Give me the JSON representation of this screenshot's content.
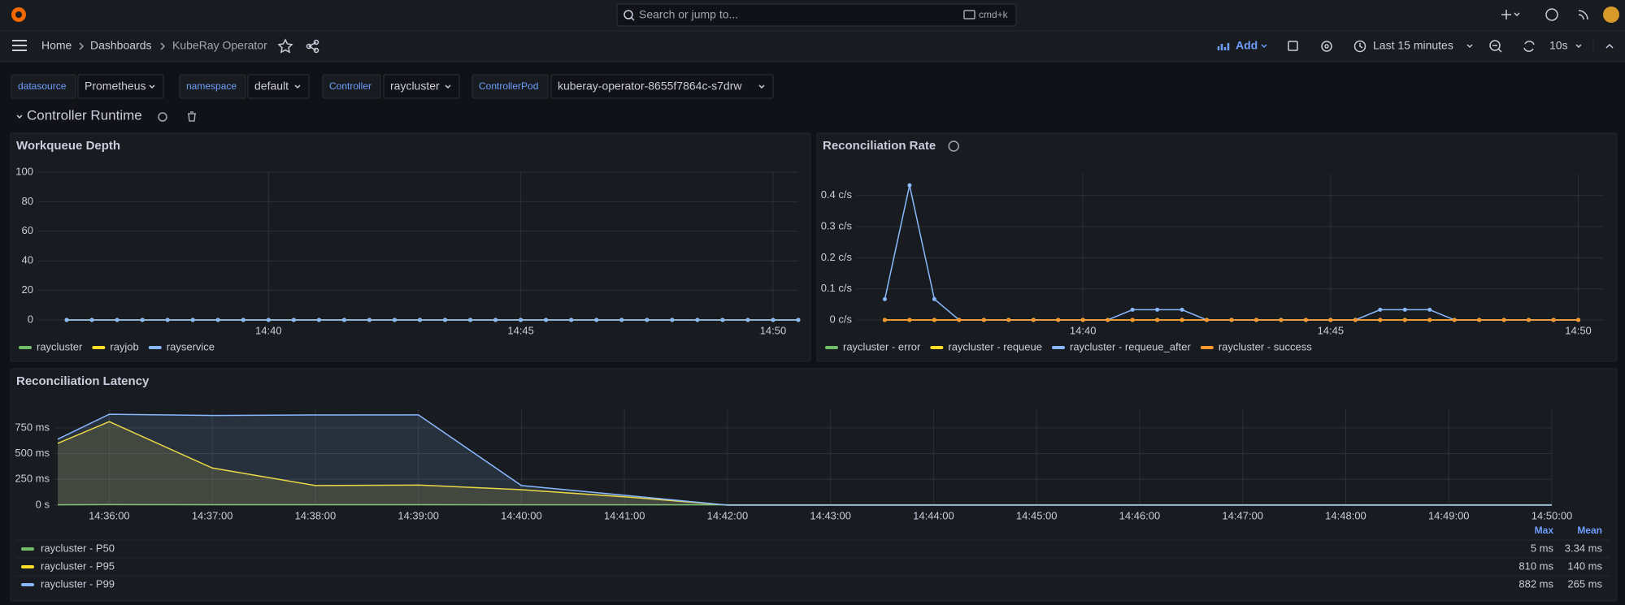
{
  "topbar": {
    "search": "Search or jump to...",
    "shortcut": "cmd+k"
  },
  "breadcrumbs": [
    "Home",
    "Dashboards",
    "KubeRay Operator"
  ],
  "toolbar": {
    "add": "Add",
    "time_range": "Last 15 minutes",
    "refresh": "10s"
  },
  "variables": [
    {
      "label": "datasource",
      "value": "Prometheus"
    },
    {
      "label": "namespace",
      "value": "default"
    },
    {
      "label": "Controller",
      "value": "raycluster"
    },
    {
      "label": "ControllerPod",
      "value": "kuberay-operator-8655f7864c-s7drw"
    }
  ],
  "row": {
    "title": "Controller Runtime"
  },
  "panels": [
    {
      "title": "Workqueue Depth",
      "type": "line",
      "points": true,
      "x": [
        "14:36:00",
        "14:36:30",
        "14:37:00",
        "14:37:30",
        "14:38:00",
        "14:38:30",
        "14:39:00",
        "14:39:30",
        "14:40:00",
        "14:40:30",
        "14:41:00",
        "14:41:30",
        "14:42:00",
        "14:42:30",
        "14:43:00",
        "14:43:30",
        "14:44:00",
        "14:44:30",
        "14:45:00",
        "14:45:30",
        "14:46:00",
        "14:46:30",
        "14:47:00",
        "14:47:30",
        "14:48:00",
        "14:48:30",
        "14:49:00",
        "14:49:30",
        "14:50:00",
        "14:50:30"
      ],
      "xlim": [
        "14:35:30",
        "14:50:30"
      ],
      "xticks": [
        "14:40",
        "14:45",
        "14:50"
      ],
      "ylim": [
        0,
        100
      ],
      "yticks": [
        0,
        20,
        40,
        60,
        80,
        100
      ],
      "grid": true,
      "series": [
        {
          "name": "raycluster",
          "color": "#73bf69",
          "values": [
            0,
            0,
            0,
            0,
            0,
            0,
            0,
            0,
            0,
            0,
            0,
            0,
            0,
            0,
            0,
            0,
            0,
            0,
            0,
            0,
            0,
            0,
            0,
            0,
            0,
            0,
            0,
            0,
            0,
            0
          ]
        },
        {
          "name": "rayjob",
          "color": "#fade2a",
          "values": [
            0,
            0,
            0,
            0,
            0,
            0,
            0,
            0,
            0,
            0,
            0,
            0,
            0,
            0,
            0,
            0,
            0,
            0,
            0,
            0,
            0,
            0,
            0,
            0,
            0,
            0,
            0,
            0,
            0,
            0
          ]
        },
        {
          "name": "rayservice",
          "color": "#8ab8ff",
          "values": [
            0,
            0,
            0,
            0,
            0,
            0,
            0,
            0,
            0,
            0,
            0,
            0,
            0,
            0,
            0,
            0,
            0,
            0,
            0,
            0,
            0,
            0,
            0,
            0,
            0,
            0,
            0,
            0,
            0,
            0
          ]
        }
      ]
    },
    {
      "title": "Reconciliation Rate",
      "type": "line",
      "points": true,
      "x": [
        "14:36:00",
        "14:36:30",
        "14:37:00",
        "14:37:30",
        "14:38:00",
        "14:38:30",
        "14:39:00",
        "14:39:30",
        "14:40:00",
        "14:40:30",
        "14:41:00",
        "14:41:30",
        "14:42:00",
        "14:42:30",
        "14:43:00",
        "14:43:30",
        "14:44:00",
        "14:44:30",
        "14:45:00",
        "14:45:30",
        "14:46:00",
        "14:46:30",
        "14:47:00",
        "14:47:30",
        "14:48:00",
        "14:48:30",
        "14:49:00",
        "14:49:30",
        "14:50:00"
      ],
      "xlim": [
        "14:35:30",
        "14:50:30"
      ],
      "xticks": [
        "14:40",
        "14:45",
        "14:50"
      ],
      "ylim": [
        0,
        0.47
      ],
      "yticks": [
        {
          "value": 0,
          "label": "0 c/s"
        },
        {
          "value": 0.1,
          "label": "0.1 c/s"
        },
        {
          "value": 0.2,
          "label": "0.2 c/s"
        },
        {
          "value": 0.3,
          "label": "0.3 c/s"
        },
        {
          "value": 0.4,
          "label": "0.4 c/s"
        }
      ],
      "grid": true,
      "series": [
        {
          "name": "raycluster - error",
          "color": "#73bf69",
          "values": [
            0,
            0,
            0,
            0,
            0,
            0,
            0,
            0,
            0,
            0,
            0,
            0,
            0,
            0,
            0,
            0,
            0,
            0,
            0,
            0,
            0,
            0,
            0,
            0,
            0,
            0,
            0,
            0,
            0
          ]
        },
        {
          "name": "raycluster - requeue",
          "color": "#fade2a",
          "values": [
            0,
            0,
            0,
            0,
            0,
            0,
            0,
            0,
            0,
            0,
            0,
            0,
            0,
            0,
            0,
            0,
            0,
            0,
            0,
            0,
            0,
            0,
            0,
            0,
            0,
            0,
            0,
            0,
            0
          ]
        },
        {
          "name": "raycluster - requeue_after",
          "color": "#8ab8ff",
          "values": [
            0.067,
            0.433,
            0.067,
            0,
            0,
            0,
            0,
            0,
            0,
            0,
            0.033,
            0.033,
            0.033,
            0,
            0,
            0,
            0,
            0,
            0,
            0,
            0.033,
            0.033,
            0.033,
            0,
            0,
            0,
            0,
            0,
            0
          ]
        },
        {
          "name": "raycluster - success",
          "color": "#ff9830",
          "values": [
            0,
            0,
            0,
            0,
            0,
            0,
            0,
            0,
            0,
            0,
            0,
            0,
            0,
            0,
            0,
            0,
            0,
            0,
            0,
            0,
            0,
            0,
            0,
            0,
            0,
            0,
            0,
            0,
            0
          ]
        }
      ]
    },
    {
      "title": "Reconciliation Latency",
      "type": "area",
      "points": false,
      "x": [
        "14:35:30",
        "14:36:00",
        "14:37:00",
        "14:38:00",
        "14:39:00",
        "14:40:00",
        "14:41:00",
        "14:42:00",
        "14:43:00",
        "14:44:00",
        "14:45:00",
        "14:46:00",
        "14:47:00",
        "14:48:00",
        "14:49:00",
        "14:50:00"
      ],
      "xlim": [
        "14:35:30",
        "14:50:00"
      ],
      "xticks": [
        "14:36:00",
        "14:37:00",
        "14:38:00",
        "14:39:00",
        "14:40:00",
        "14:41:00",
        "14:42:00",
        "14:43:00",
        "14:44:00",
        "14:45:00",
        "14:46:00",
        "14:47:00",
        "14:48:00",
        "14:49:00",
        "14:50:00"
      ],
      "ylim": [
        0,
        930
      ],
      "yticks": [
        {
          "value": 0,
          "label": "0 s"
        },
        {
          "value": 250,
          "label": "250 ms"
        },
        {
          "value": 500,
          "label": "500 ms"
        },
        {
          "value": 750,
          "label": "750 ms"
        }
      ],
      "grid": true,
      "legend_columns": [
        "Max",
        "Mean"
      ],
      "series": [
        {
          "name": "raycluster - P50",
          "color": "#73bf69",
          "values": [
            3,
            5,
            4,
            4,
            4,
            3,
            3,
            3,
            3,
            3,
            3,
            3,
            3,
            3,
            3,
            3
          ],
          "stats": [
            "5 ms",
            "3.34 ms"
          ]
        },
        {
          "name": "raycluster - P95",
          "color": "#fade2a",
          "values": [
            600,
            810,
            360,
            190,
            195,
            150,
            80,
            0,
            0,
            0,
            0,
            0,
            0,
            0,
            0,
            0
          ],
          "stats": [
            "810 ms",
            "140 ms"
          ]
        },
        {
          "name": "raycluster - P99",
          "color": "#8ab8ff",
          "values": [
            640,
            882,
            870,
            875,
            876,
            190,
            95,
            0,
            0,
            0,
            0,
            0,
            0,
            0,
            0,
            0
          ],
          "stats": [
            "882 ms",
            "265 ms"
          ]
        }
      ]
    }
  ]
}
